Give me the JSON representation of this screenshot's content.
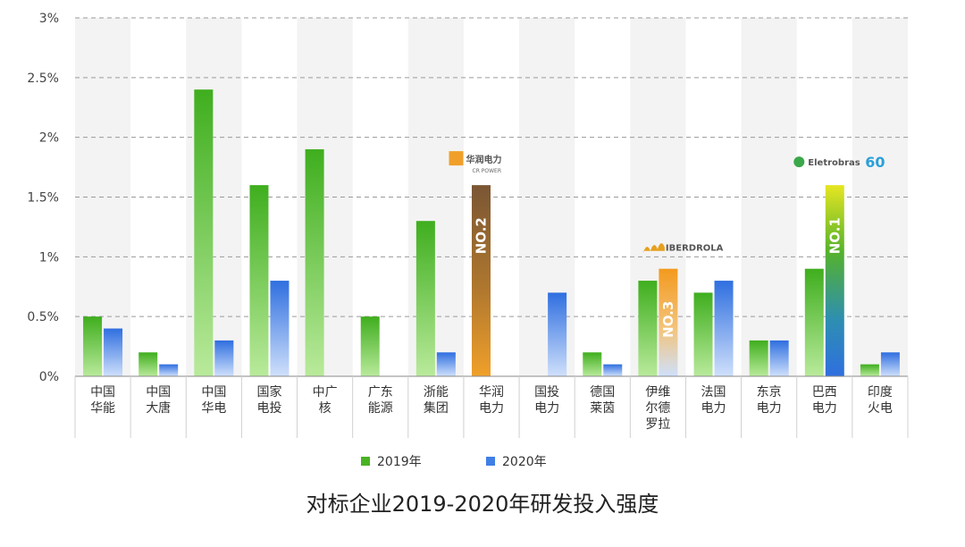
{
  "chart_data": {
    "type": "bar",
    "title": "对标企业2019-2020年研发投入强度",
    "xlabel": "",
    "ylabel": "",
    "ylim": [
      0,
      3
    ],
    "yticks": [
      "0%",
      "0.5%",
      "1%",
      "1.5%",
      "2%",
      "2.5%",
      "3%"
    ],
    "legend_position": "bottom",
    "categories": [
      [
        "中国",
        "华能"
      ],
      [
        "中国",
        "大唐"
      ],
      [
        "中国",
        "华电"
      ],
      [
        "国家",
        "电投"
      ],
      [
        "中广",
        "核"
      ],
      [
        "广东",
        "能源"
      ],
      [
        "浙能",
        "集团"
      ],
      [
        "华润",
        "电力"
      ],
      [
        "国投",
        "电力"
      ],
      [
        "德国",
        "莱茵"
      ],
      [
        "伊维",
        "尔德",
        "罗拉"
      ],
      [
        "法国",
        "电力"
      ],
      [
        "东京",
        "电力"
      ],
      [
        "巴西",
        "电力"
      ],
      [
        "印度",
        "火电"
      ]
    ],
    "series": [
      {
        "name": "2019年",
        "values": [
          0.5,
          0.2,
          2.4,
          1.6,
          1.9,
          0.5,
          1.3,
          1.6,
          null,
          0.2,
          0.8,
          0.7,
          0.3,
          0.9,
          0.1
        ]
      },
      {
        "name": "2020年",
        "values": [
          0.4,
          0.1,
          0.3,
          0.8,
          null,
          null,
          0.2,
          null,
          0.7,
          0.1,
          0.9,
          0.8,
          0.3,
          1.6,
          0.2
        ]
      }
    ],
    "colors": {
      "2019": "#49b323",
      "2020": "#3f7fe6",
      "orange": "#e89a2a",
      "brown": "#8a5a2b",
      "yellow": "#e9e21a"
    },
    "annotations": [
      {
        "category_index": 7,
        "series": "2019年",
        "label": "NO.2",
        "logo": "华润电力",
        "logo_sub": "CR POWER"
      },
      {
        "category_index": 10,
        "series": "2020年",
        "label": "NO.3",
        "logo": "IBERDROLA"
      },
      {
        "category_index": 13,
        "series": "2020年",
        "label": "NO.1",
        "logo": "Eletrobras",
        "logo_extra": "60"
      }
    ]
  }
}
